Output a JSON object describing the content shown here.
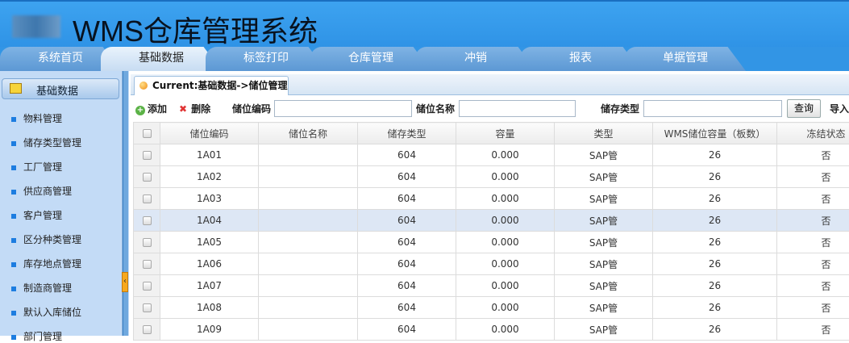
{
  "header": {
    "title": "WMS仓库管理系统"
  },
  "nav_tabs": [
    "系统首页",
    "基础数据",
    "标签打印",
    "仓库管理",
    "冲销",
    "报表",
    "单据管理"
  ],
  "active_tab": "基础数据",
  "sidebar": {
    "section": "基础数据",
    "items": [
      "物料管理",
      "储存类型管理",
      "工厂管理",
      "供应商管理",
      "客户管理",
      "区分种类管理",
      "库存地点管理",
      "制造商管理",
      "默认入库储位",
      "部门管理"
    ]
  },
  "breadcrumb": "Current:基础数据->储位管理",
  "toolbar": {
    "add": "添加",
    "delete": "删除",
    "f1_label": "储位编码",
    "f1_value": "",
    "f2_label": "储位名称",
    "f2_value": "",
    "f3_label": "储存类型",
    "f3_value": "",
    "query": "查询",
    "import": "导入"
  },
  "table": {
    "columns": [
      "储位编码",
      "储位名称",
      "储存类型",
      "容量",
      "类型",
      "WMS储位容量（板数）",
      "冻结状态"
    ],
    "rows": [
      [
        "1A01",
        "",
        "604",
        "0.000",
        "SAP管",
        "26",
        "否"
      ],
      [
        "1A02",
        "",
        "604",
        "0.000",
        "SAP管",
        "26",
        "否"
      ],
      [
        "1A03",
        "",
        "604",
        "0.000",
        "SAP管",
        "26",
        "否"
      ],
      [
        "1A04",
        "",
        "604",
        "0.000",
        "SAP管",
        "26",
        "否"
      ],
      [
        "1A05",
        "",
        "604",
        "0.000",
        "SAP管",
        "26",
        "否"
      ],
      [
        "1A06",
        "",
        "604",
        "0.000",
        "SAP管",
        "26",
        "否"
      ],
      [
        "1A07",
        "",
        "604",
        "0.000",
        "SAP管",
        "26",
        "否"
      ],
      [
        "1A08",
        "",
        "604",
        "0.000",
        "SAP管",
        "26",
        "否"
      ],
      [
        "1A09",
        "",
        "604",
        "0.000",
        "SAP管",
        "26",
        "否"
      ]
    ],
    "selected_row": 3
  }
}
